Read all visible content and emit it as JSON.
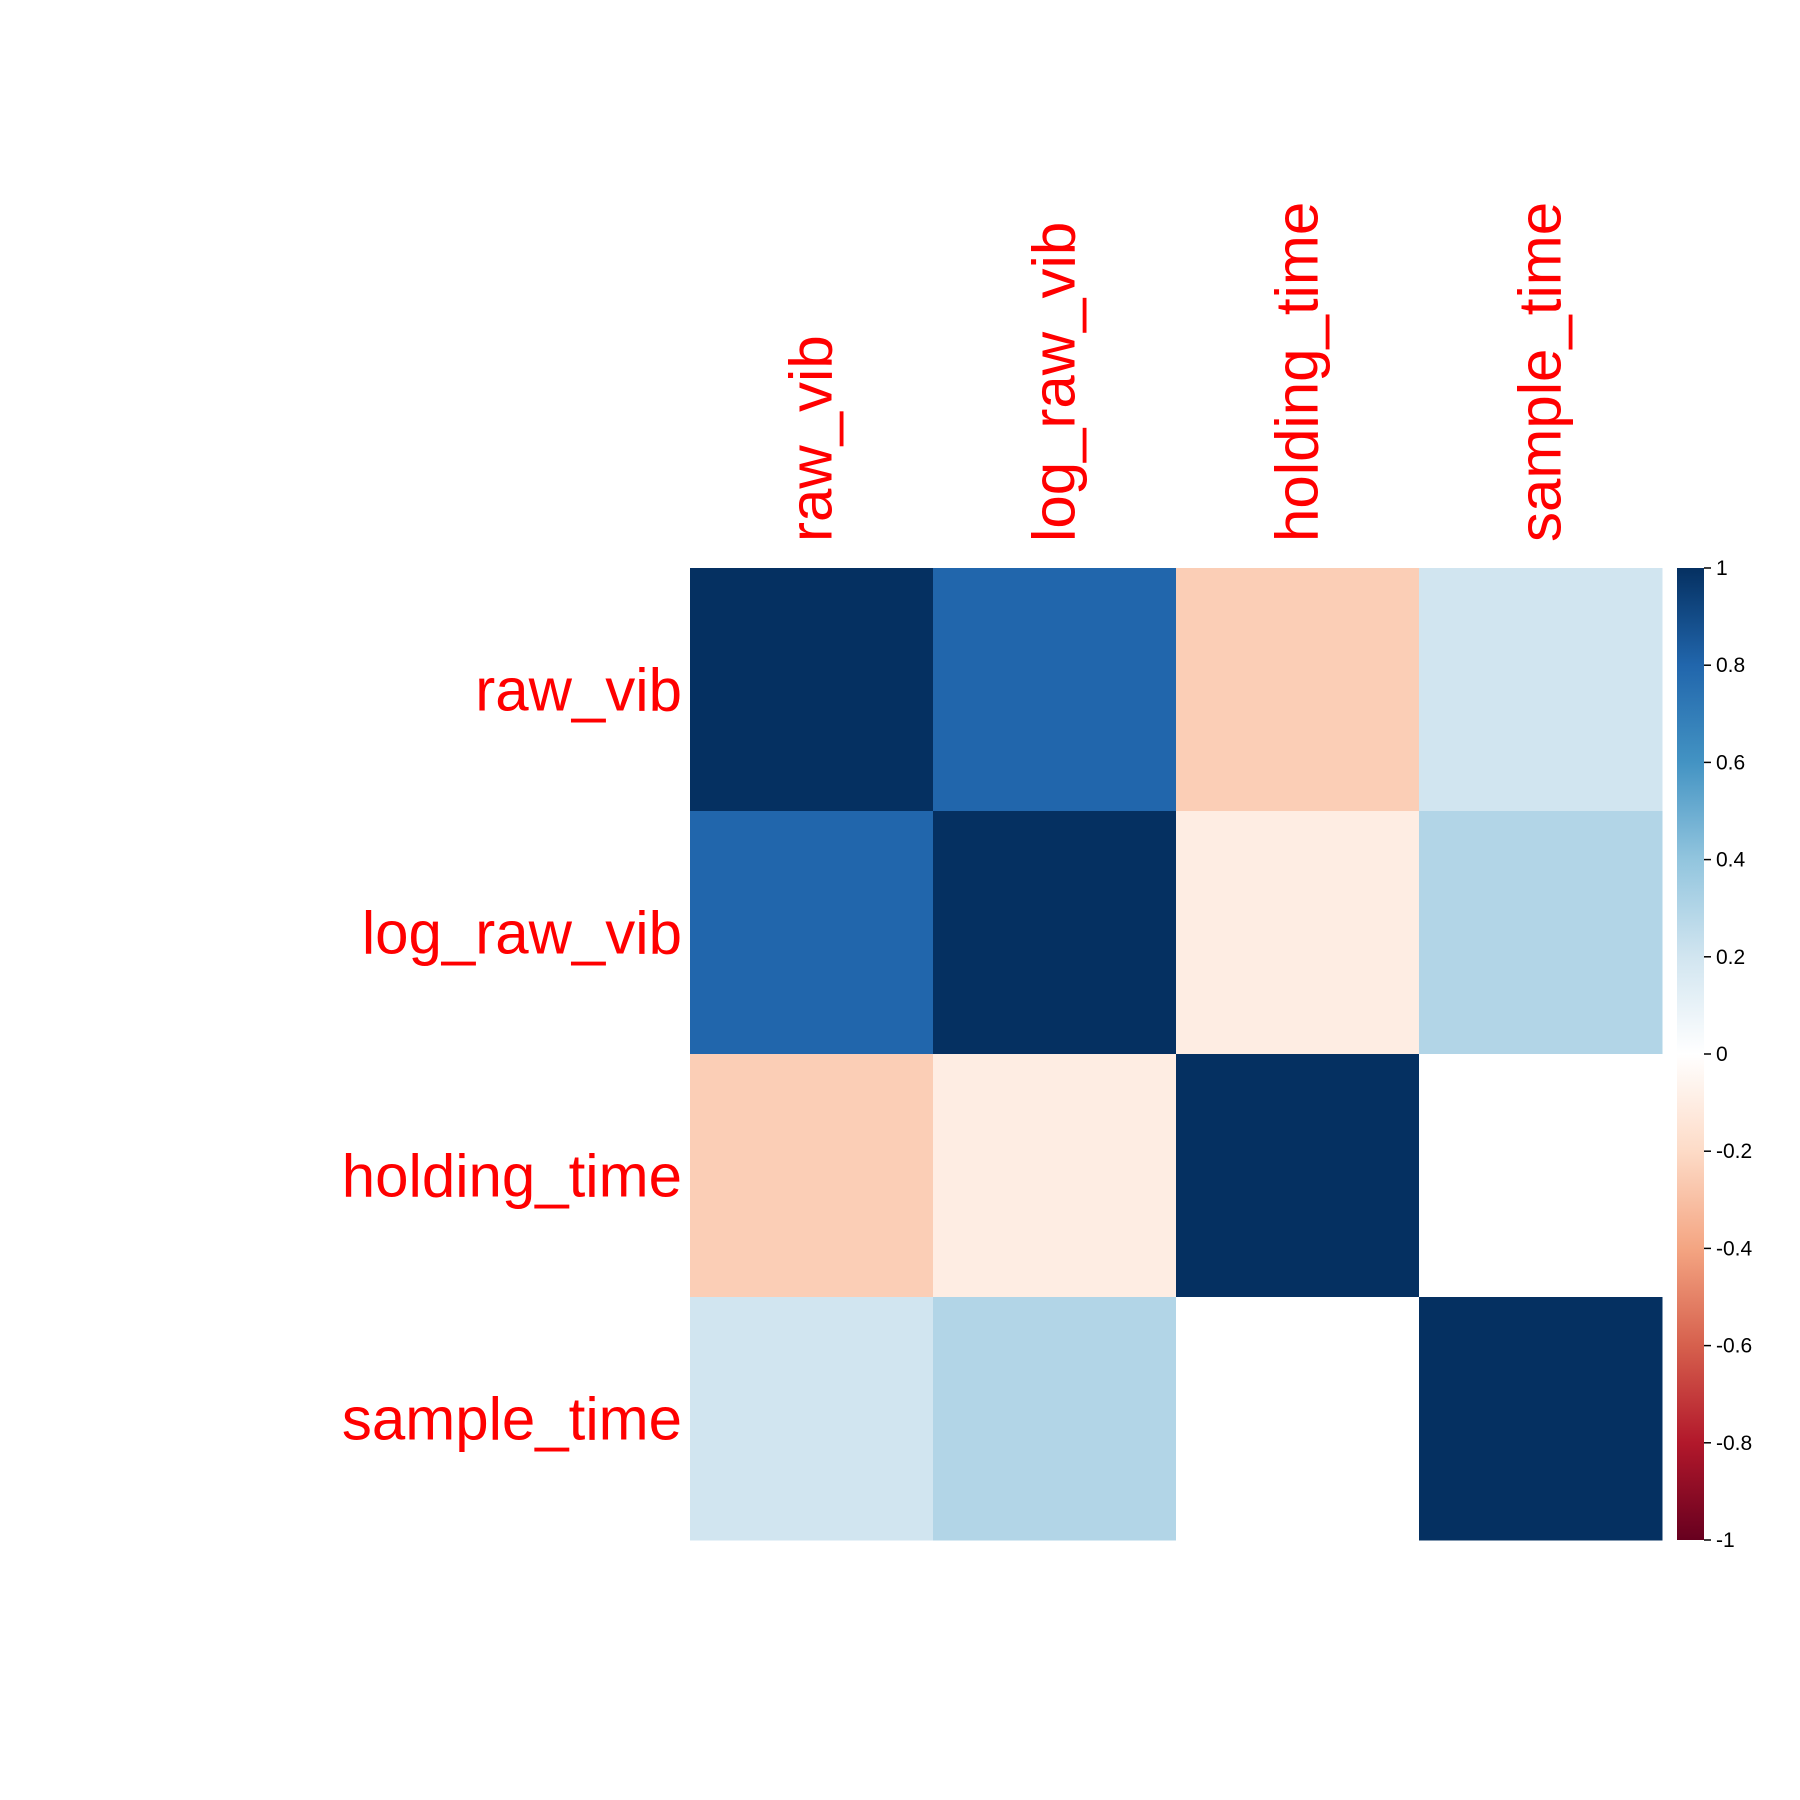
{
  "chart_data": {
    "type": "heatmap",
    "variables": [
      "raw_vib",
      "log_raw_vib",
      "holding_time",
      "sample_time"
    ],
    "matrix": [
      [
        1.0,
        0.8,
        -0.25,
        0.2
      ],
      [
        0.8,
        1.0,
        -0.1,
        0.3
      ],
      [
        -0.25,
        -0.1,
        1.0,
        0.0
      ],
      [
        0.2,
        0.3,
        0.0,
        1.0
      ]
    ],
    "colorbar": {
      "range": [
        -1,
        1
      ],
      "ticks": [
        1,
        0.8,
        0.6,
        0.4,
        0.2,
        0,
        -0.2,
        -0.4,
        -0.6,
        -0.8,
        -1
      ],
      "tick_labels": [
        "1",
        "0.8",
        "0.6",
        "0.4",
        "0.2",
        "0",
        "-0.2",
        "-0.4",
        "-0.6",
        "-0.8",
        "-1"
      ],
      "colors": [
        "#67001F",
        "#B2182B",
        "#D6604D",
        "#F4A582",
        "#FDDBC7",
        "#FFFFFF",
        "#D1E5F0",
        "#92C5DE",
        "#4393C3",
        "#2166AC",
        "#053061"
      ]
    },
    "label_color": "#FF0000",
    "title": "",
    "xlabel": "",
    "ylabel": ""
  }
}
